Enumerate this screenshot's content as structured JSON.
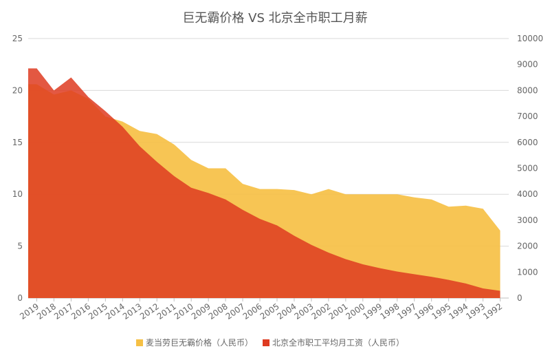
{
  "chart_data": {
    "type": "area",
    "title": "巨无霸价格 VS 北京全市职工月薪",
    "x": [
      "2019",
      "2018",
      "2017",
      "2016",
      "2015",
      "2014",
      "2013",
      "2012",
      "2011",
      "2010",
      "2009",
      "2008",
      "2007",
      "2006",
      "2005",
      "2004",
      "2003",
      "2002",
      "2001",
      "2000",
      "1999",
      "1998",
      "1997",
      "1996",
      "1995",
      "1994",
      "1993",
      "1992"
    ],
    "y_left": {
      "min": 0,
      "max": 25,
      "ticks": [
        0,
        5,
        10,
        15,
        20,
        25
      ]
    },
    "y_right": {
      "min": 0,
      "max": 10000,
      "ticks": [
        0,
        1000,
        2000,
        3000,
        4000,
        5000,
        6000,
        7000,
        8000,
        9000,
        10000
      ]
    },
    "series": [
      {
        "name": "麦当劳巨无霸价格（人民币）",
        "axis": "left",
        "color": "#F6C045",
        "values": [
          20.6,
          19.6,
          20.0,
          19.2,
          17.5,
          17.0,
          16.1,
          15.8,
          14.8,
          13.3,
          12.5,
          12.5,
          11.0,
          10.5,
          10.5,
          10.4,
          10.0,
          10.5,
          10.0,
          10.0,
          10.0,
          10.0,
          9.7,
          9.5,
          8.8,
          8.9,
          8.6,
          6.5
        ]
      },
      {
        "name": "北京全市职工平均月工资（人民币）",
        "axis": "right",
        "color": "#DE3B21",
        "values": [
          8850,
          8000,
          8500,
          7750,
          7200,
          6600,
          5850,
          5250,
          4700,
          4250,
          4050,
          3800,
          3400,
          3050,
          2800,
          2400,
          2050,
          1750,
          1500,
          1300,
          1150,
          1020,
          920,
          820,
          700,
          560,
          370,
          280
        ]
      }
    ],
    "legend": {
      "position": "bottom"
    },
    "grid": true
  },
  "colors": {
    "grid": "#d9d9d9",
    "axis": "#bfbfbf",
    "text": "#666666"
  }
}
